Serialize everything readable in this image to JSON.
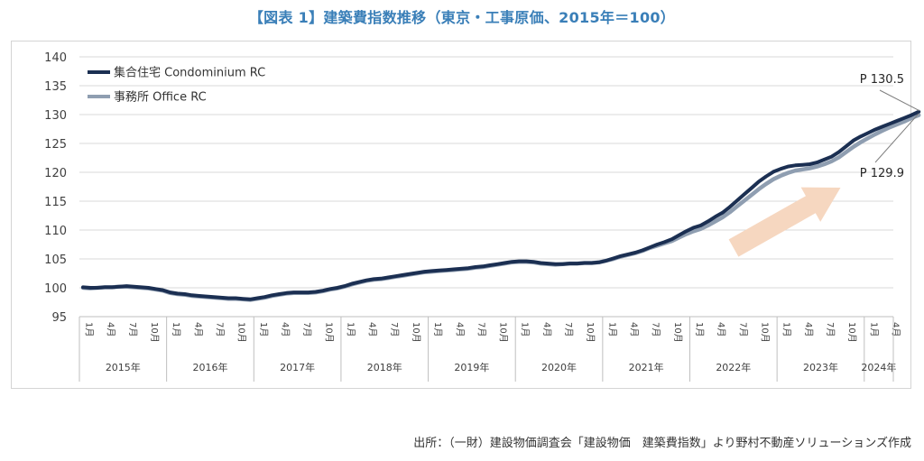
{
  "title": "【図表 1】建築費指数推移（東京・工事原価、2015年＝100）",
  "source": "出所：（一財）建設物価調査会「建設物価　建築費指数」より野村不動産ソリューションズ作成",
  "colors": {
    "condo": "#1b2f52",
    "office": "#8f9eb1",
    "arrow": "#f6d7c0",
    "grid": "#d9d9d9"
  },
  "chart_data": {
    "type": "line",
    "y_ticks": [
      "140",
      "135",
      "130",
      "125",
      "120",
      "115",
      "110",
      "105",
      "100",
      "95"
    ],
    "ylim": [
      95,
      140
    ],
    "month_labels": [
      "1月",
      "4月",
      "7月",
      "10月"
    ],
    "last_year_month_labels": [
      "1月",
      "4月"
    ],
    "years": [
      "2015年",
      "2016年",
      "2017年",
      "2018年",
      "2019年",
      "2020年",
      "2021年",
      "2022年",
      "2023年",
      "2024年"
    ],
    "grid": true,
    "legend_position": "top-left",
    "series": [
      {
        "name": "集合住宅  Condominium  RC",
        "key": "condo",
        "values": [
          100.1,
          100.0,
          100.0,
          100.1,
          100.1,
          100.2,
          100.3,
          100.2,
          100.1,
          100.0,
          99.8,
          99.6,
          99.2,
          99.0,
          98.9,
          98.7,
          98.6,
          98.5,
          98.4,
          98.3,
          98.2,
          98.2,
          98.1,
          98.0,
          98.2,
          98.4,
          98.7,
          98.9,
          99.1,
          99.2,
          99.2,
          99.2,
          99.3,
          99.5,
          99.8,
          100.0,
          100.3,
          100.7,
          101.0,
          101.3,
          101.5,
          101.6,
          101.8,
          102.0,
          102.2,
          102.4,
          102.6,
          102.8,
          102.9,
          103.0,
          103.1,
          103.2,
          103.3,
          103.4,
          103.6,
          103.7,
          103.9,
          104.1,
          104.3,
          104.5,
          104.6,
          104.6,
          104.5,
          104.3,
          104.2,
          104.1,
          104.1,
          104.2,
          104.2,
          104.3,
          104.3,
          104.4,
          104.7,
          105.1,
          105.5,
          105.8,
          106.1,
          106.5,
          107.0,
          107.5,
          107.9,
          108.4,
          109.1,
          109.8,
          110.4,
          110.8,
          111.5,
          112.3,
          113.0,
          114.0,
          115.1,
          116.2,
          117.3,
          118.4,
          119.3,
          120.1,
          120.6,
          121.0,
          121.2,
          121.3,
          121.4,
          121.7,
          122.2,
          122.7,
          123.5,
          124.5,
          125.5,
          126.2,
          126.8,
          127.4,
          127.9,
          128.4,
          128.9,
          129.4,
          129.9,
          130.5
        ]
      },
      {
        "name": "事務所  Office  RC",
        "key": "office",
        "values": [
          100.0,
          99.9,
          100.0,
          100.1,
          100.1,
          100.2,
          100.2,
          100.1,
          100.0,
          99.9,
          99.7,
          99.5,
          99.1,
          98.9,
          98.8,
          98.6,
          98.5,
          98.4,
          98.3,
          98.2,
          98.1,
          98.1,
          98.0,
          97.9,
          98.1,
          98.3,
          98.6,
          98.8,
          99.0,
          99.1,
          99.1,
          99.1,
          99.2,
          99.4,
          99.7,
          99.9,
          100.2,
          100.6,
          100.9,
          101.2,
          101.4,
          101.5,
          101.7,
          101.9,
          102.1,
          102.3,
          102.5,
          102.7,
          102.8,
          102.9,
          103.0,
          103.1,
          103.2,
          103.3,
          103.5,
          103.6,
          103.8,
          104.0,
          104.2,
          104.4,
          104.5,
          104.5,
          104.4,
          104.2,
          104.1,
          104.0,
          104.1,
          104.2,
          104.2,
          104.3,
          104.3,
          104.4,
          104.7,
          105.0,
          105.4,
          105.7,
          106.0,
          106.4,
          106.9,
          107.3,
          107.7,
          108.1,
          108.7,
          109.3,
          109.8,
          110.2,
          110.8,
          111.5,
          112.2,
          113.1,
          114.1,
          115.1,
          116.1,
          117.1,
          118.0,
          118.8,
          119.4,
          119.9,
          120.3,
          120.5,
          120.7,
          121.0,
          121.4,
          121.9,
          122.6,
          123.5,
          124.4,
          125.2,
          125.9,
          126.6,
          127.2,
          127.8,
          128.3,
          128.8,
          129.4,
          129.9
        ]
      }
    ],
    "annotations": [
      "P 130.5",
      "P 129.9"
    ]
  }
}
